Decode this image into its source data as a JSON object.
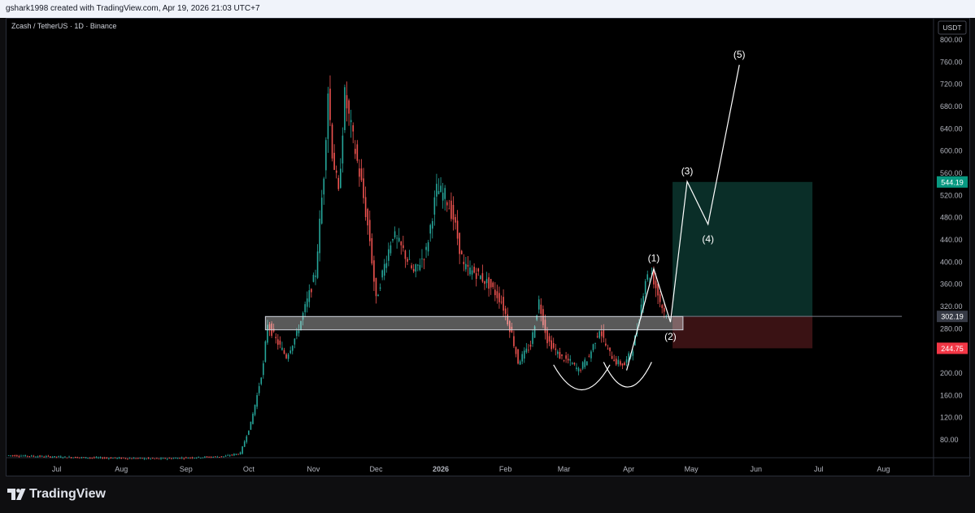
{
  "header": {
    "text": "gshark1998 created with TradingView.com, Apr 19, 2026 21:03 UTC+7"
  },
  "symbol": {
    "title": "Zcash / TetherUS · 1D · Binance"
  },
  "brand": {
    "name": "TradingView",
    "logo_icon": "tradingview-logo-icon"
  },
  "colors": {
    "up": "#26a69a",
    "down": "#ef5350",
    "target": "#0a2e28",
    "stop": "#3a1214",
    "wave": "#ffffff",
    "zone": "#d1d4dc"
  },
  "chart_data": {
    "type": "candlestick",
    "currency_label": "USDT",
    "y_ticks": [
      "800.00",
      "760.00",
      "720.00",
      "680.00",
      "640.00",
      "600.00",
      "560.00",
      "520.00",
      "480.00",
      "440.00",
      "400.00",
      "360.00",
      "320.00",
      "280.00",
      "240.00",
      "200.00",
      "160.00",
      "120.00",
      "80.00"
    ],
    "y_tick_values": [
      800,
      760,
      720,
      680,
      640,
      600,
      560,
      520,
      480,
      440,
      400,
      360,
      320,
      280,
      240,
      200,
      160,
      120,
      80
    ],
    "ylim": [
      40,
      820
    ],
    "x_ticks": [
      "Jul",
      "Aug",
      "Sep",
      "Oct",
      "Nov",
      "Dec",
      "2026",
      "Feb",
      "Mar",
      "Apr",
      "May",
      "Jun",
      "Jul",
      "Aug"
    ],
    "x_tick_dates": [
      "2025-07-01",
      "2025-08-01",
      "2025-09-01",
      "2025-10-01",
      "2025-11-01",
      "2025-12-01",
      "2026-01-01",
      "2026-02-01",
      "2026-03-01",
      "2026-04-01",
      "2026-05-01",
      "2026-06-01",
      "2026-07-01",
      "2026-08-01"
    ],
    "x_range": [
      "2025-06-07",
      "2026-08-25"
    ],
    "price_labels": [
      {
        "text": "544.19",
        "value": 544.19,
        "color": "#089981"
      },
      {
        "text": "302.19",
        "value": 302.19,
        "color": "#363a45"
      },
      {
        "text": "244.75",
        "value": 244.75,
        "color": "#f23645"
      }
    ],
    "price_path": [
      [
        "2025-06-08",
        52
      ],
      [
        "2025-07-15",
        48
      ],
      [
        "2025-08-20",
        46
      ],
      [
        "2025-09-20",
        50
      ],
      [
        "2025-09-28",
        56
      ],
      [
        "2025-10-03",
        110
      ],
      [
        "2025-10-06",
        160
      ],
      [
        "2025-10-09",
        215
      ],
      [
        "2025-10-11",
        290
      ],
      [
        "2025-10-15",
        260
      ],
      [
        "2025-10-20",
        230
      ],
      [
        "2025-10-25",
        270
      ],
      [
        "2025-10-30",
        330
      ],
      [
        "2025-11-03",
        380
      ],
      [
        "2025-11-07",
        560
      ],
      [
        "2025-11-09",
        710
      ],
      [
        "2025-11-11",
        600
      ],
      [
        "2025-11-14",
        520
      ],
      [
        "2025-11-17",
        700
      ],
      [
        "2025-11-21",
        620
      ],
      [
        "2025-11-25",
        540
      ],
      [
        "2025-11-29",
        440
      ],
      [
        "2025-12-02",
        330
      ],
      [
        "2025-12-05",
        380
      ],
      [
        "2025-12-10",
        450
      ],
      [
        "2025-12-15",
        420
      ],
      [
        "2025-12-20",
        380
      ],
      [
        "2025-12-26",
        420
      ],
      [
        "2025-12-31",
        530
      ],
      [
        "2026-01-04",
        520
      ],
      [
        "2026-01-08",
        480
      ],
      [
        "2026-01-13",
        390
      ],
      [
        "2026-01-19",
        380
      ],
      [
        "2026-01-25",
        360
      ],
      [
        "2026-01-31",
        330
      ],
      [
        "2026-02-05",
        270
      ],
      [
        "2026-02-08",
        220
      ],
      [
        "2026-02-14",
        250
      ],
      [
        "2026-02-18",
        330
      ],
      [
        "2026-02-22",
        260
      ],
      [
        "2026-02-28",
        230
      ],
      [
        "2026-03-05",
        220
      ],
      [
        "2026-03-09",
        205
      ],
      [
        "2026-03-14",
        230
      ],
      [
        "2026-03-19",
        280
      ],
      [
        "2026-03-23",
        240
      ],
      [
        "2026-03-27",
        220
      ],
      [
        "2026-03-31",
        215
      ],
      [
        "2026-04-04",
        245
      ],
      [
        "2026-04-07",
        300
      ],
      [
        "2026-04-10",
        370
      ],
      [
        "2026-04-13",
        380
      ],
      [
        "2026-04-17",
        330
      ],
      [
        "2026-04-19",
        310
      ]
    ],
    "support_zone": {
      "from": "2025-10-09",
      "to": "2026-04-27",
      "low": 278,
      "high": 302
    },
    "position": {
      "from": "2026-04-22",
      "to": "2026-06-28",
      "entry": 302.19,
      "target": 544.19,
      "stop": 244.75
    },
    "elliott_wave": [
      {
        "label": "",
        "date": "2026-03-31",
        "value": 205
      },
      {
        "label": "(1)",
        "date": "2026-04-13",
        "value": 388
      },
      {
        "label": "(2)",
        "date": "2026-04-21",
        "value": 292
      },
      {
        "label": "(3)",
        "date": "2026-04-29",
        "value": 545
      },
      {
        "label": "(4)",
        "date": "2026-05-09",
        "value": 468
      },
      {
        "label": "(5)",
        "date": "2026-05-24",
        "value": 755
      }
    ],
    "double_bottom_arcs": [
      {
        "from": "2026-02-24",
        "to": "2026-03-23",
        "top": 215,
        "bottom": 170
      },
      {
        "from": "2026-03-20",
        "to": "2026-04-12",
        "top": 220,
        "bottom": 175
      }
    ]
  }
}
